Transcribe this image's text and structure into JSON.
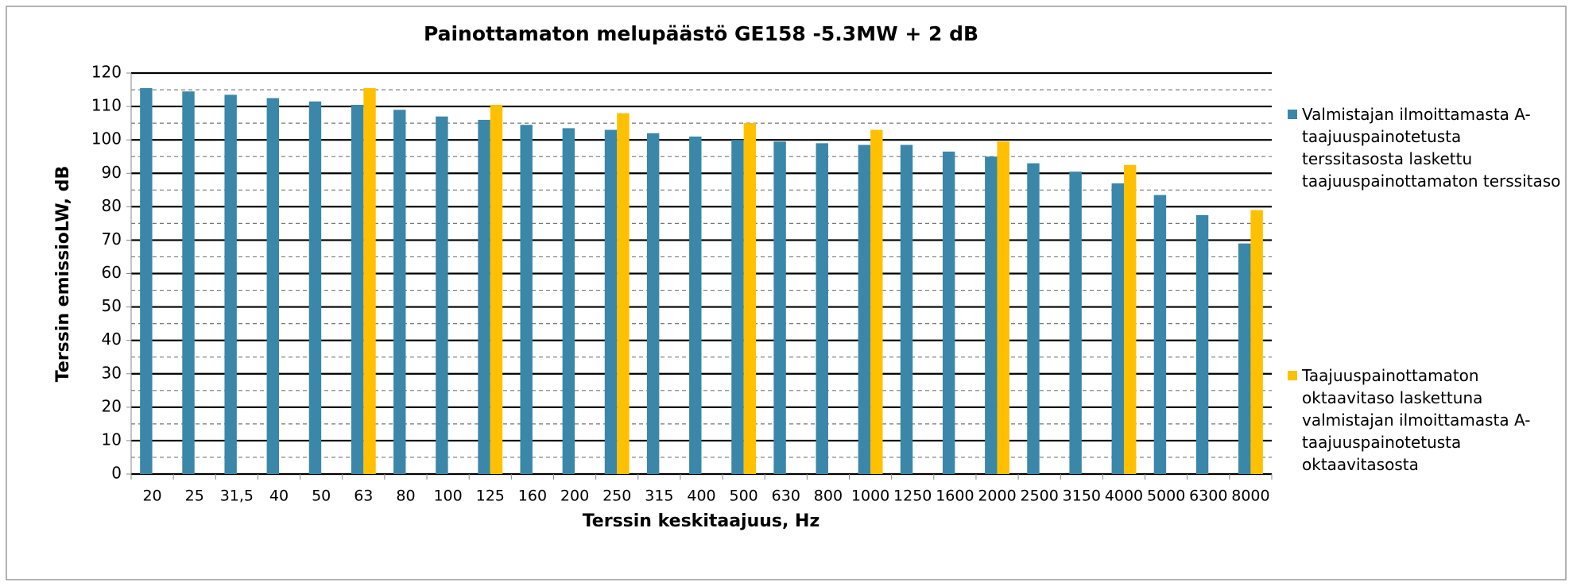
{
  "chart_data": {
    "type": "bar",
    "title": "Painottamaton melupäästö GE158 -5.3MW + 2 dB",
    "x_label": "Terssin keskitaajuus, Hz",
    "y_label": "Terssin emissioLW, dB",
    "categories": [
      "20",
      "25",
      "31,5",
      "40",
      "50",
      "63",
      "80",
      "100",
      "125",
      "160",
      "200",
      "250",
      "315",
      "400",
      "500",
      "630",
      "800",
      "1000",
      "1250",
      "1600",
      "2000",
      "2500",
      "3150",
      "4000",
      "5000",
      "6300",
      "8000"
    ],
    "series": [
      {
        "name": "Valmistajan ilmoittamasta A-taajuuspainotetusta terssitasosta laskettu taajuuspainottamaton terssitaso",
        "color": "#3a87a9",
        "values": [
          115.5,
          114.5,
          113.5,
          112.5,
          111.5,
          110.5,
          109,
          107,
          106,
          104.5,
          103.5,
          103,
          102,
          101,
          100,
          99.5,
          99,
          98.5,
          98.5,
          96.5,
          95,
          93,
          90.5,
          87,
          83.5,
          77.5,
          69
        ]
      },
      {
        "name": "Taajuuspainottamaton oktaavitaso laskettuna valmistajan ilmoittamasta A-taajuuspainotetusta oktaavitasosta",
        "color": "#ffc000",
        "values": [
          null,
          null,
          null,
          null,
          null,
          115.5,
          null,
          null,
          110.5,
          null,
          null,
          108,
          null,
          null,
          105,
          null,
          null,
          103,
          null,
          null,
          99.5,
          null,
          null,
          92.5,
          null,
          null,
          79
        ]
      }
    ],
    "ylim": [
      0,
      120
    ],
    "yticks": [
      0,
      10,
      20,
      30,
      40,
      50,
      60,
      70,
      80,
      90,
      100,
      110,
      120
    ],
    "grid": true,
    "legend": "right"
  }
}
